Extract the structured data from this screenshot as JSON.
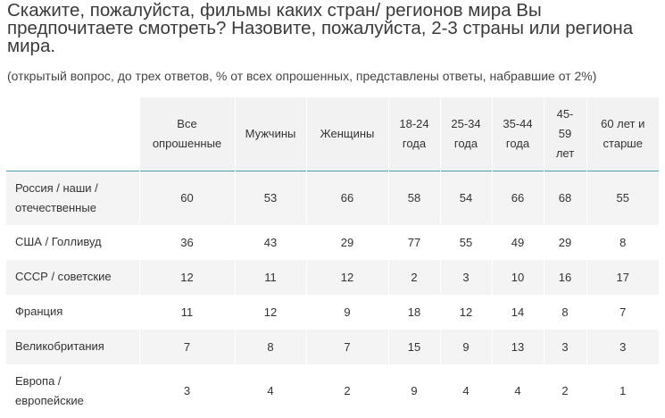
{
  "title": "Скажите, пожалуйста, фильмы каких стран/ регионов мира Вы предпочитаете смотреть? Назовите, пожалуйста, 2-3 страны или региона мира.",
  "subtitle": "(открытый вопрос, до трех ответов, % от всех опрошенных, представлены ответы, набравшие от 2%)",
  "table": {
    "columns": [
      "Все опрошенные",
      "Мужчины",
      "Женщины",
      "18-24 года",
      "25-34 года",
      "35-44 года",
      "45-59 лет",
      "60 лет и старше"
    ],
    "rows": [
      {
        "label": "Россия / наши / отечественные",
        "values": [
          "60",
          "53",
          "66",
          "58",
          "54",
          "66",
          "68",
          "55"
        ]
      },
      {
        "label": "США / Голливуд",
        "values": [
          "36",
          "43",
          "29",
          "77",
          "55",
          "49",
          "29",
          "8"
        ]
      },
      {
        "label": "СССР / советские",
        "values": [
          "12",
          "11",
          "12",
          "2",
          "3",
          "10",
          "16",
          "17"
        ]
      },
      {
        "label": "Франция",
        "values": [
          "11",
          "12",
          "9",
          "18",
          "12",
          "14",
          "8",
          "7"
        ]
      },
      {
        "label": "Великобритания",
        "values": [
          "7",
          "8",
          "7",
          "15",
          "9",
          "13",
          "3",
          "3"
        ]
      },
      {
        "label": "Европа / европейские",
        "values": [
          "3",
          "4",
          "2",
          "9",
          "4",
          "4",
          "2",
          "1"
        ]
      }
    ]
  },
  "colors": {
    "header_rule": "#4a9fb5",
    "band": "#f4f4f4"
  }
}
